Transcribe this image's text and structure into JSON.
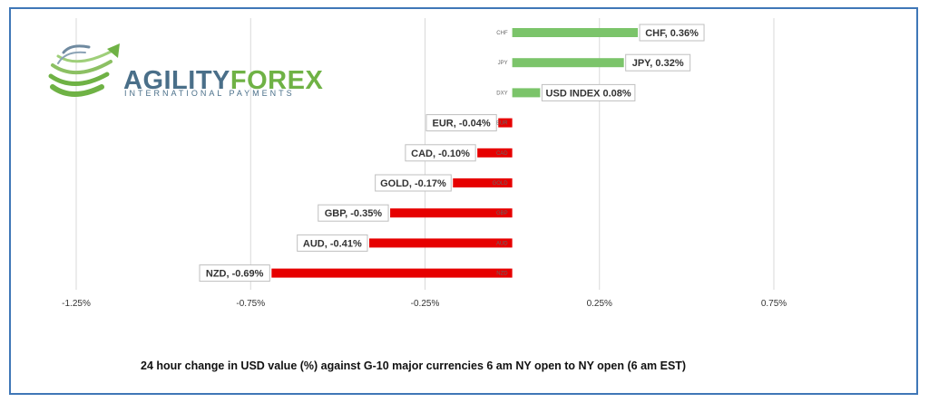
{
  "brand": {
    "name_part1": "AGILITY",
    "name_part2": "FOREX",
    "tagline": "INTERNATIONAL PAYMENTS"
  },
  "colors": {
    "positive": "#7bc46a",
    "negative": "#e60000",
    "gridline": "#d9d9d9",
    "frame": "#3f77b7"
  },
  "chart_data": {
    "type": "bar",
    "orientation": "horizontal",
    "categories": [
      "CHF",
      "JPY",
      "DXY",
      "EUR",
      "CAD",
      "GOLD",
      "GBP",
      "AUD",
      "NZD"
    ],
    "values": [
      0.36,
      0.32,
      0.08,
      -0.04,
      -0.1,
      -0.17,
      -0.35,
      -0.41,
      -0.69
    ],
    "data_labels": [
      "CHF, 0.36%",
      "JPY, 0.32%",
      "USD INDEX 0.08%",
      "EUR, -0.04%",
      "CAD, -0.10%",
      "GOLD, -0.17%",
      "GBP, -0.35%",
      "AUD, -0.41%",
      "NZD, -0.69%"
    ],
    "xticks": [
      -1.25,
      -0.75,
      -0.25,
      0.25,
      0.75
    ],
    "xtick_labels": [
      "-1.25%",
      "-0.75%",
      "-0.25%",
      "0.25%",
      "0.75%"
    ],
    "xlim": [
      -1.25,
      0.75
    ],
    "xlabel": "24 hour change in  USD value (%)  against  G-10 major currencies 6 am NY open to NY open  (6 am EST)",
    "grid": true,
    "legend": "none"
  }
}
